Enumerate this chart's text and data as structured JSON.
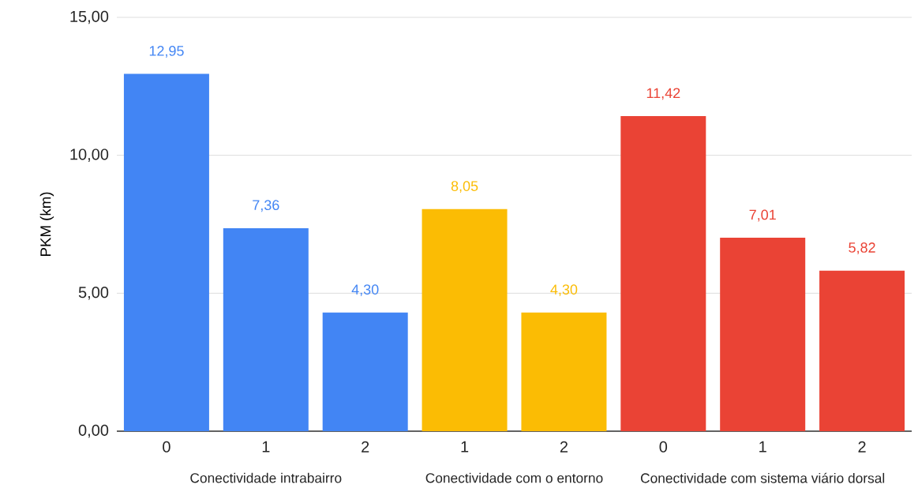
{
  "chart_data": {
    "type": "bar",
    "ylabel": "PKM (km)",
    "categories": [
      "0",
      "1",
      "2",
      "1",
      "2",
      "0",
      "1",
      "2"
    ],
    "series": [
      {
        "color": "#4285f4",
        "values": [
          12.95,
          7.36,
          4.3,
          null,
          null,
          null,
          null,
          null
        ],
        "value_labels": [
          "12,95",
          "7,36",
          "4,30",
          null,
          null,
          null,
          null,
          null
        ]
      },
      {
        "color": "#fbbc04",
        "values": [
          null,
          null,
          null,
          8.05,
          4.3,
          null,
          null,
          null
        ],
        "value_labels": [
          null,
          null,
          null,
          "8,05",
          "4,30",
          null,
          null,
          null
        ]
      },
      {
        "color": "#ea4335",
        "values": [
          null,
          null,
          null,
          null,
          null,
          11.42,
          7.01,
          5.82
        ],
        "value_labels": [
          null,
          null,
          null,
          null,
          null,
          "11,42",
          "7,01",
          "5,82"
        ]
      }
    ],
    "annotations": [
      "Conectividade intrabairro",
      "Conectividade  com o entorno",
      "Conectividade com sistema viário dorsal"
    ],
    "ylim": [
      0,
      15
    ],
    "yticks": [
      {
        "value": 0,
        "label": "0,00"
      },
      {
        "value": 5,
        "label": "5,00"
      },
      {
        "value": 10,
        "label": "10,00"
      },
      {
        "value": 15,
        "label": "15,00"
      }
    ],
    "grid": "y"
  }
}
